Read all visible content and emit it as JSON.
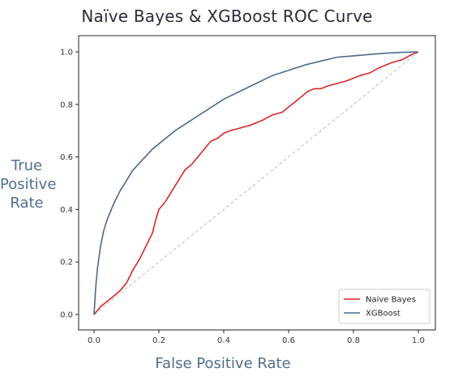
{
  "chart_data": {
    "type": "line",
    "title": "Naïve Bayes & XGBoost ROC Curve",
    "xlabel": "False Positive Rate",
    "ylabel": "True Positive Rate",
    "ylabel_lines": [
      "True",
      "Positive",
      "Rate"
    ],
    "xlim": [
      0.0,
      1.0
    ],
    "ylim": [
      0.0,
      1.0
    ],
    "xticks": [
      "0.0",
      "0.2",
      "0.4",
      "0.6",
      "0.8",
      "1.0"
    ],
    "yticks": [
      "0.0",
      "0.2",
      "0.4",
      "0.6",
      "0.8",
      "1.0"
    ],
    "grid": false,
    "legend": "bottom-right",
    "diagonal": {
      "x": [
        0,
        1
      ],
      "y": [
        0,
        1
      ],
      "style": "dashed",
      "color": "#bbbbbb"
    },
    "series": [
      {
        "name": "Naive Bayes",
        "color": "#d62728",
        "x": [
          0,
          0.02,
          0.05,
          0.08,
          0.1,
          0.12,
          0.14,
          0.16,
          0.18,
          0.19,
          0.2,
          0.22,
          0.24,
          0.26,
          0.28,
          0.3,
          0.32,
          0.34,
          0.36,
          0.38,
          0.4,
          0.42,
          0.45,
          0.48,
          0.5,
          0.52,
          0.55,
          0.58,
          0.6,
          0.62,
          0.64,
          0.66,
          0.68,
          0.7,
          0.72,
          0.75,
          0.78,
          0.8,
          0.82,
          0.85,
          0.88,
          0.9,
          0.92,
          0.95,
          0.98,
          1.0
        ],
        "y": [
          0,
          0.03,
          0.06,
          0.09,
          0.12,
          0.17,
          0.21,
          0.26,
          0.31,
          0.36,
          0.4,
          0.43,
          0.47,
          0.51,
          0.55,
          0.57,
          0.6,
          0.63,
          0.66,
          0.67,
          0.69,
          0.7,
          0.71,
          0.72,
          0.73,
          0.74,
          0.76,
          0.77,
          0.79,
          0.81,
          0.83,
          0.85,
          0.86,
          0.86,
          0.87,
          0.88,
          0.89,
          0.9,
          0.91,
          0.92,
          0.94,
          0.95,
          0.96,
          0.97,
          0.99,
          1.0
        ]
      },
      {
        "name": "XGBoost",
        "color": "#4c6a8c",
        "x": [
          0,
          0.005,
          0.01,
          0.02,
          0.03,
          0.04,
          0.06,
          0.08,
          0.1,
          0.12,
          0.15,
          0.18,
          0.2,
          0.25,
          0.3,
          0.35,
          0.4,
          0.45,
          0.5,
          0.55,
          0.6,
          0.65,
          0.7,
          0.75,
          0.8,
          0.85,
          0.9,
          0.95,
          1.0
        ],
        "y": [
          0,
          0.1,
          0.17,
          0.26,
          0.32,
          0.36,
          0.42,
          0.47,
          0.51,
          0.55,
          0.59,
          0.63,
          0.65,
          0.7,
          0.74,
          0.78,
          0.82,
          0.85,
          0.88,
          0.91,
          0.93,
          0.95,
          0.965,
          0.98,
          0.985,
          0.99,
          0.995,
          0.998,
          1.0
        ]
      }
    ]
  }
}
